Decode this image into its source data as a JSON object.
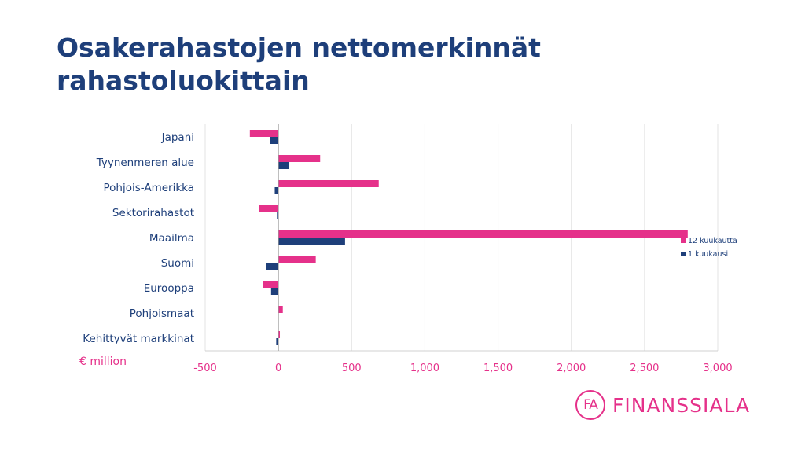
{
  "title": {
    "line1": "Osakerahastojen nettomerkinnät",
    "line2": "rahastoluokittain"
  },
  "unit_label": "€ million",
  "logo": {
    "mark": "FA",
    "text": "FINANSSIALA"
  },
  "colors": {
    "twelve_month": "#e5318a",
    "one_month": "#1e3f7a",
    "title": "#1e3f7a"
  },
  "chart_data": {
    "type": "bar",
    "orientation": "horizontal",
    "categories": [
      "Japani",
      "Tyynenmeren alue",
      "Pohjois-Amerikka",
      "Sektorirahastot",
      "Maailma",
      "Suomi",
      "Eurooppa",
      "Pohjoismaat",
      "Kehittyvät markkinat"
    ],
    "series": [
      {
        "name": "12 kuukautta",
        "values": [
          -195,
          285,
          685,
          -135,
          2795,
          255,
          -105,
          30,
          10
        ]
      },
      {
        "name": "1 kuukausi",
        "values": [
          -55,
          70,
          -25,
          -10,
          455,
          -85,
          -50,
          -5,
          -15
        ]
      }
    ],
    "xlim": [
      -500,
      3000
    ],
    "xticks": [
      -500,
      0,
      500,
      1000,
      1500,
      2000,
      2500,
      3000
    ],
    "xtick_labels": [
      "-500",
      "0",
      "500",
      "1,000",
      "1,500",
      "2,000",
      "2,500",
      "3,000"
    ],
    "grid": true,
    "legend_position": "right"
  }
}
